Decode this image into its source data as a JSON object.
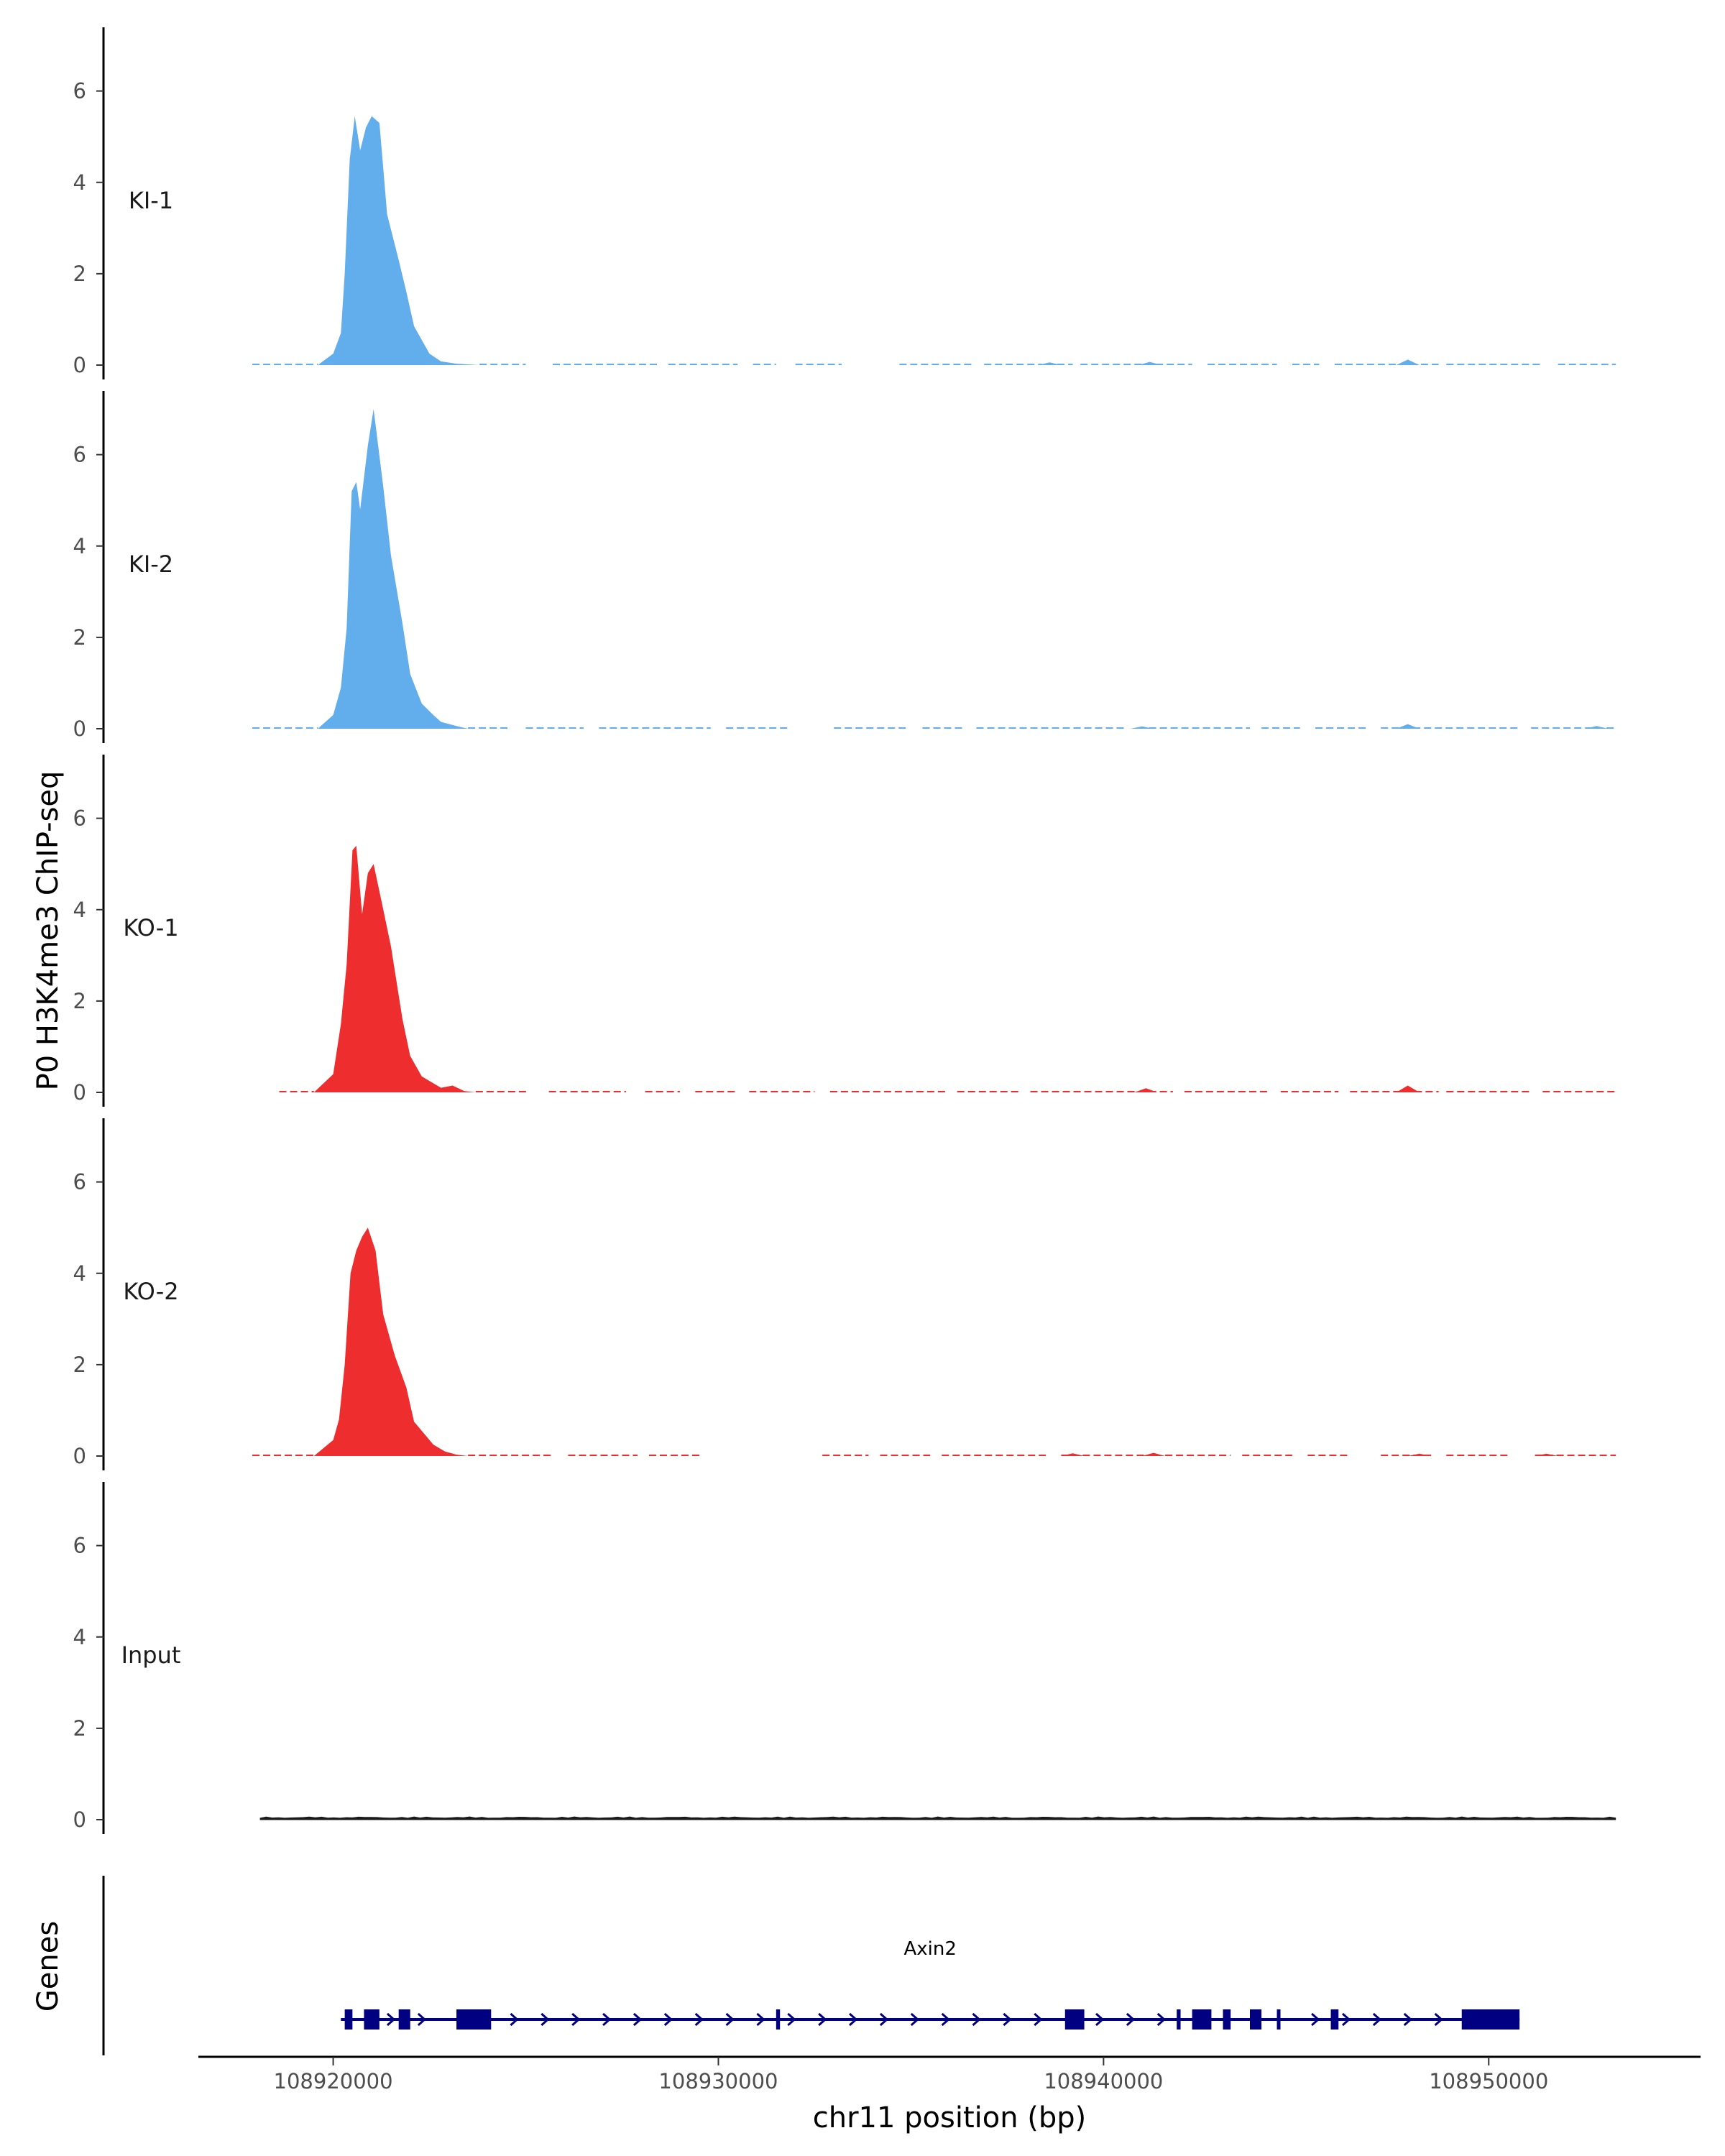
{
  "chart_data": {
    "type": "area",
    "ylabel": "P0 H3K4me3 ChIP-seq",
    "xlabel": "chr11 position (bp)",
    "xlim": [
      108916500,
      108955500
    ],
    "ylim": [
      0,
      7.3
    ],
    "yticks": [
      0,
      2,
      4,
      6
    ],
    "xticks": [
      108920000,
      108930000,
      108940000,
      108950000
    ],
    "xtick_labels": [
      "108920000",
      "108930000",
      "108940000",
      "108950000"
    ],
    "grid": false,
    "tracks": [
      {
        "name": "KI-1",
        "color": "#62ADEC",
        "peak": [
          [
            108919600,
            0
          ],
          [
            108920000,
            0.25
          ],
          [
            108920200,
            0.7
          ],
          [
            108920300,
            2.0
          ],
          [
            108920430,
            4.5
          ],
          [
            108920560,
            5.45
          ],
          [
            108920700,
            4.7
          ],
          [
            108920850,
            5.2
          ],
          [
            108921000,
            5.45
          ],
          [
            108921200,
            5.3
          ],
          [
            108921400,
            3.3
          ],
          [
            108921700,
            2.3
          ],
          [
            108921900,
            1.6
          ],
          [
            108922100,
            0.85
          ],
          [
            108922300,
            0.55
          ],
          [
            108922500,
            0.25
          ],
          [
            108922800,
            0.08
          ],
          [
            108923200,
            0.03
          ],
          [
            108923800,
            0
          ]
        ],
        "bumps": [
          [
            108938600,
            0.06
          ],
          [
            108941200,
            0.07
          ],
          [
            108947900,
            0.12
          ]
        ],
        "segments": [
          [
            108917900,
            108919600
          ],
          [
            108923800,
            108925000
          ],
          [
            108925700,
            108928500
          ],
          [
            108928700,
            108930500
          ],
          [
            108930900,
            108931500
          ],
          [
            108932000,
            108933200
          ],
          [
            108934700,
            108936600
          ],
          [
            108936900,
            108938400
          ],
          [
            108938800,
            108939200
          ],
          [
            108939400,
            108942300
          ],
          [
            108942700,
            108944500
          ],
          [
            108944900,
            108945600
          ],
          [
            108946000,
            108948700
          ],
          [
            108948900,
            108951400
          ],
          [
            108951800,
            108953300
          ]
        ]
      },
      {
        "name": "KI-2",
        "color": "#62ADEC",
        "peak": [
          [
            108919600,
            0
          ],
          [
            108920000,
            0.3
          ],
          [
            108920200,
            0.9
          ],
          [
            108920350,
            2.2
          ],
          [
            108920480,
            5.2
          ],
          [
            108920600,
            5.4
          ],
          [
            108920700,
            4.8
          ],
          [
            108920900,
            6.2
          ],
          [
            108921050,
            7.0
          ],
          [
            108921300,
            5.3
          ],
          [
            108921500,
            3.8
          ],
          [
            108921800,
            2.3
          ],
          [
            108922000,
            1.2
          ],
          [
            108922300,
            0.55
          ],
          [
            108922600,
            0.3
          ],
          [
            108922800,
            0.15
          ],
          [
            108923200,
            0.06
          ],
          [
            108923500,
            0
          ]
        ],
        "bumps": [
          [
            108941000,
            0.05
          ],
          [
            108947900,
            0.1
          ],
          [
            108952800,
            0.06
          ]
        ],
        "segments": [
          [
            108917900,
            108919600
          ],
          [
            108923500,
            108924600
          ],
          [
            108925000,
            108926500
          ],
          [
            108926900,
            108929800
          ],
          [
            108930200,
            108931800
          ],
          [
            108933000,
            108934900
          ],
          [
            108935300,
            108936400
          ],
          [
            108936700,
            108940600
          ],
          [
            108940900,
            108943800
          ],
          [
            108944100,
            108945100
          ],
          [
            108945500,
            108946900
          ],
          [
            108947200,
            108950800
          ],
          [
            108951100,
            108953300
          ]
        ]
      },
      {
        "name": "KO-1",
        "color": "#EE2E2E",
        "peak": [
          [
            108919500,
            0
          ],
          [
            108920000,
            0.4
          ],
          [
            108920200,
            1.5
          ],
          [
            108920350,
            2.8
          ],
          [
            108920500,
            5.3
          ],
          [
            108920600,
            5.4
          ],
          [
            108920750,
            3.9
          ],
          [
            108920900,
            4.8
          ],
          [
            108921050,
            5.0
          ],
          [
            108921250,
            4.2
          ],
          [
            108921500,
            3.2
          ],
          [
            108921800,
            1.6
          ],
          [
            108922000,
            0.8
          ],
          [
            108922300,
            0.35
          ],
          [
            108922500,
            0.25
          ],
          [
            108922800,
            0.1
          ],
          [
            108923100,
            0.15
          ],
          [
            108923400,
            0.03
          ],
          [
            108923700,
            0
          ]
        ],
        "bumps": [
          [
            108941100,
            0.09
          ],
          [
            108947900,
            0.15
          ]
        ],
        "segments": [
          [
            108918600,
            108919500
          ],
          [
            108923700,
            108925100
          ],
          [
            108925600,
            108927600
          ],
          [
            108928100,
            108929000
          ],
          [
            108929400,
            108930500
          ],
          [
            108930800,
            108932500
          ],
          [
            108932900,
            108935900
          ],
          [
            108936200,
            108937800
          ],
          [
            108938100,
            108941800
          ],
          [
            108942100,
            108944300
          ],
          [
            108944600,
            108946100
          ],
          [
            108946400,
            108948700
          ],
          [
            108948900,
            108951100
          ],
          [
            108951400,
            108953300
          ]
        ]
      },
      {
        "name": "KO-2",
        "color": "#EE2E2E",
        "peak": [
          [
            108919500,
            0
          ],
          [
            108920000,
            0.35
          ],
          [
            108920150,
            0.8
          ],
          [
            108920300,
            2.0
          ],
          [
            108920450,
            4.0
          ],
          [
            108920600,
            4.5
          ],
          [
            108920750,
            4.8
          ],
          [
            108920900,
            5.0
          ],
          [
            108921100,
            4.5
          ],
          [
            108921300,
            3.1
          ],
          [
            108921600,
            2.2
          ],
          [
            108921900,
            1.5
          ],
          [
            108922100,
            0.75
          ],
          [
            108922400,
            0.45
          ],
          [
            108922600,
            0.25
          ],
          [
            108922900,
            0.1
          ],
          [
            108923200,
            0.03
          ],
          [
            108923500,
            0
          ]
        ],
        "bumps": [
          [
            108939200,
            0.06
          ],
          [
            108941300,
            0.07
          ],
          [
            108948200,
            0.05
          ],
          [
            108951500,
            0.05
          ]
        ],
        "segments": [
          [
            108917900,
            108919500
          ],
          [
            108923500,
            108925700
          ],
          [
            108926100,
            108927900
          ],
          [
            108928200,
            108929600
          ],
          [
            108932700,
            108933900
          ],
          [
            108934200,
            108935500
          ],
          [
            108935800,
            108938500
          ],
          [
            108938900,
            108941200
          ],
          [
            108941600,
            108943300
          ],
          [
            108943600,
            108944900
          ],
          [
            108945300,
            108946400
          ],
          [
            108947200,
            108948600
          ],
          [
            108948900,
            108950500
          ],
          [
            108951200,
            108953300
          ]
        ]
      },
      {
        "name": "Input",
        "color": "#1a1a1a",
        "peak": [],
        "bumps": [],
        "segments": [
          [
            108918100,
            108953300
          ]
        ]
      }
    ],
    "genes": {
      "label": "Genes",
      "gene_name": "Axin2",
      "color": "#000080",
      "span": [
        108920200,
        108950800
      ],
      "exons": [
        [
          108920300,
          108920500
        ],
        [
          108920800,
          108921200
        ],
        [
          108921700,
          108922000
        ],
        [
          108923200,
          108924100
        ],
        [
          108931500,
          108931600
        ],
        [
          108939000,
          108939500
        ],
        [
          108941900,
          108942000
        ],
        [
          108942300,
          108942800
        ],
        [
          108943100,
          108943300
        ],
        [
          108943800,
          108944100
        ],
        [
          108944500,
          108944550
        ],
        [
          108945900,
          108946100
        ],
        [
          108949300,
          108950800
        ]
      ]
    }
  }
}
